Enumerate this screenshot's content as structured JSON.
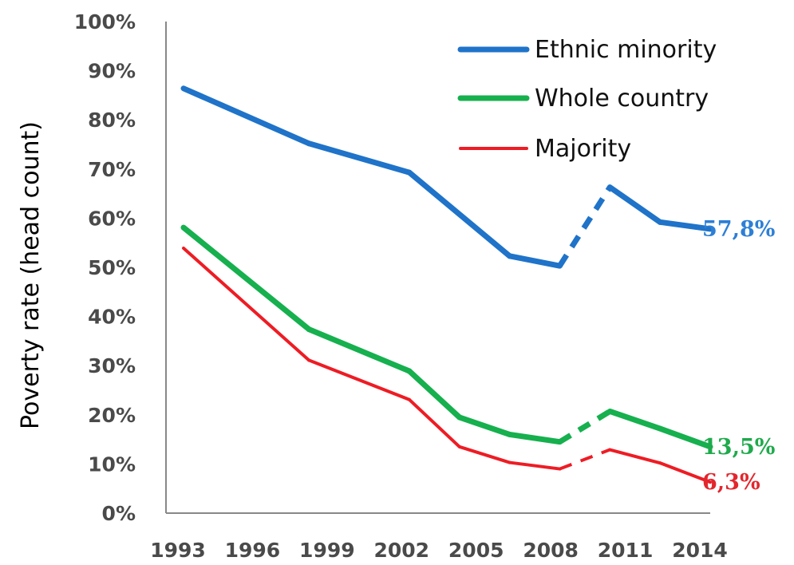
{
  "chart_data": {
    "type": "line",
    "ylabel": "Poverty rate (head count)",
    "xlabel": "",
    "x_ticks": [
      "1993",
      "1996",
      "1999",
      "2002",
      "2005",
      "2008",
      "2011",
      "2014"
    ],
    "y_ticks": [
      "0%",
      "10%",
      "20%",
      "30%",
      "40%",
      "50%",
      "60%",
      "70%",
      "80%",
      "90%",
      "100%"
    ],
    "ylim": [
      0,
      100
    ],
    "xlim": [
      1992.3,
      2014
    ],
    "grid": false,
    "legend_position": "top-right",
    "series": [
      {
        "name": "Ethnic minority",
        "color": "#1f73c9",
        "x": [
          1993,
          1998,
          2002,
          2006,
          2008,
          2010,
          2012,
          2014
        ],
        "values": [
          86.4,
          75.2,
          69.3,
          52.3,
          50.3,
          66.3,
          59.2,
          57.8
        ],
        "end_label": "57,8%",
        "end_label_color": "#2d7fd6"
      },
      {
        "name": "Whole country",
        "color": "#16b04e",
        "x": [
          1993,
          1998,
          2002,
          2004,
          2006,
          2008,
          2010,
          2012,
          2014
        ],
        "values": [
          58.1,
          37.4,
          28.9,
          19.5,
          16.0,
          14.5,
          20.7,
          17.2,
          13.5
        ],
        "end_label": "13,5%",
        "end_label_color": "#1faa4c"
      },
      {
        "name": "Majority",
        "color": "#ee1c24",
        "x": [
          1993,
          1998,
          2002,
          2004,
          2006,
          2008,
          2010,
          2012,
          2014
        ],
        "values": [
          53.9,
          31.1,
          23.1,
          13.5,
          10.3,
          9.0,
          12.9,
          10.2,
          6.3
        ],
        "end_label": "6,3%",
        "end_label_color": "#e3262d"
      }
    ],
    "dashed_segment_x": [
      2008,
      2010
    ]
  }
}
